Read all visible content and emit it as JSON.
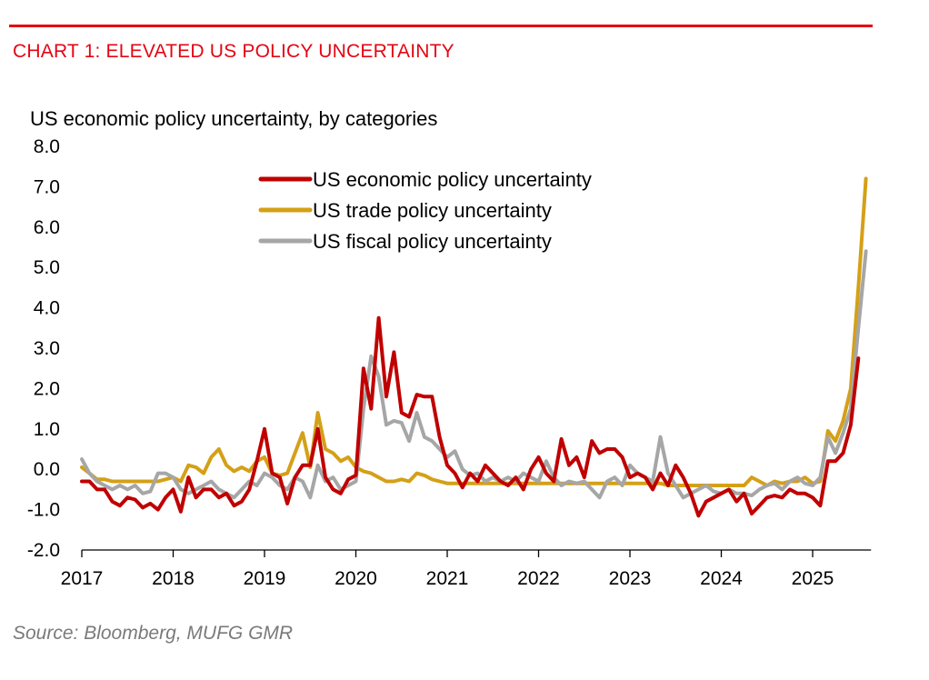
{
  "header": {
    "title": "CHART 1: ELEVATED US POLICY UNCERTAINTY",
    "subtitle": "US economic policy uncertainty, by categories"
  },
  "footer": {
    "source": "Source: Bloomberg, MUFG GMR"
  },
  "colors": {
    "title": "#e30613",
    "economic": "#c00000",
    "trade": "#d4a017",
    "fiscal": "#a6a6a6"
  },
  "chart_data": {
    "type": "line",
    "title": "US economic policy uncertainty, by categories",
    "x_start": "2017-01",
    "frequency": "monthly",
    "ylim": [
      -2.0,
      8.0
    ],
    "y_ticks": [
      "-2.0",
      "-1.0",
      "0.0",
      "1.0",
      "2.0",
      "3.0",
      "4.0",
      "5.0",
      "6.0",
      "7.0",
      "8.0"
    ],
    "x_ticks": [
      "2017",
      "2018",
      "2019",
      "2020",
      "2021",
      "2022",
      "2023",
      "2024",
      "2025"
    ],
    "grid": false,
    "legend_position": "top-center",
    "series": [
      {
        "name": "US economic policy uncertainty",
        "color": "#c00000",
        "values": [
          -0.3,
          -0.3,
          -0.5,
          -0.5,
          -0.8,
          -0.9,
          -0.7,
          -0.75,
          -0.95,
          -0.85,
          -1.0,
          -0.7,
          -0.5,
          -1.05,
          -0.2,
          -0.7,
          -0.5,
          -0.5,
          -0.7,
          -0.6,
          -0.9,
          -0.8,
          -0.5,
          0.2,
          1.0,
          -0.1,
          -0.2,
          -0.85,
          -0.2,
          0.1,
          0.1,
          1.0,
          -0.2,
          -0.5,
          -0.6,
          -0.25,
          -0.15,
          2.5,
          1.5,
          3.75,
          1.8,
          2.9,
          1.4,
          1.3,
          1.85,
          1.8,
          1.8,
          0.8,
          0.1,
          -0.1,
          -0.45,
          -0.1,
          -0.3,
          0.1,
          -0.1,
          -0.3,
          -0.4,
          -0.2,
          -0.5,
          0.0,
          0.3,
          -0.1,
          -0.3,
          0.75,
          0.1,
          0.3,
          -0.2,
          0.7,
          0.4,
          0.5,
          0.5,
          0.3,
          -0.2,
          -0.1,
          -0.2,
          -0.5,
          -0.1,
          -0.4,
          0.1,
          -0.2,
          -0.6,
          -1.15,
          -0.8,
          -0.7,
          -0.6,
          -0.5,
          -0.8,
          -0.6,
          -1.1,
          -0.9,
          -0.7,
          -0.65,
          -0.7,
          -0.5,
          -0.6,
          -0.6,
          -0.7,
          -0.9,
          0.2,
          0.2,
          0.4,
          1.1,
          2.75
        ]
      },
      {
        "name": "US trade policy uncertainty",
        "color": "#d4a017",
        "values": [
          0.05,
          -0.1,
          -0.25,
          -0.25,
          -0.3,
          -0.3,
          -0.3,
          -0.3,
          -0.3,
          -0.3,
          -0.3,
          -0.25,
          -0.2,
          -0.3,
          0.1,
          0.05,
          -0.1,
          0.3,
          0.5,
          0.1,
          -0.05,
          0.05,
          -0.05,
          0.2,
          0.3,
          -0.1,
          -0.15,
          -0.1,
          0.4,
          0.9,
          0.05,
          1.4,
          0.5,
          0.4,
          0.2,
          0.3,
          0.05,
          -0.05,
          -0.1,
          -0.2,
          -0.3,
          -0.3,
          -0.25,
          -0.3,
          -0.1,
          -0.15,
          -0.25,
          -0.3,
          -0.35,
          -0.35,
          -0.35,
          -0.35,
          -0.35,
          -0.35,
          -0.35,
          -0.35,
          -0.35,
          -0.35,
          -0.35,
          -0.35,
          -0.35,
          -0.35,
          -0.35,
          -0.35,
          -0.35,
          -0.35,
          -0.35,
          -0.35,
          -0.35,
          -0.35,
          -0.35,
          -0.35,
          -0.35,
          -0.35,
          -0.35,
          -0.35,
          -0.35,
          -0.4,
          -0.4,
          -0.4,
          -0.4,
          -0.4,
          -0.4,
          -0.4,
          -0.4,
          -0.4,
          -0.4,
          -0.4,
          -0.2,
          -0.3,
          -0.4,
          -0.3,
          -0.35,
          -0.3,
          -0.3,
          -0.2,
          -0.35,
          -0.3,
          0.95,
          0.7,
          1.2,
          2.0,
          4.5,
          7.2
        ]
      },
      {
        "name": "US fiscal policy uncertainty",
        "color": "#a6a6a6",
        "values": [
          0.25,
          -0.1,
          -0.3,
          -0.4,
          -0.5,
          -0.4,
          -0.5,
          -0.4,
          -0.6,
          -0.55,
          -0.1,
          -0.1,
          -0.2,
          -0.5,
          -0.6,
          -0.5,
          -0.4,
          -0.3,
          -0.5,
          -0.6,
          -0.7,
          -0.5,
          -0.3,
          -0.4,
          -0.1,
          -0.2,
          -0.4,
          -0.5,
          -0.2,
          -0.3,
          -0.7,
          0.1,
          -0.3,
          -0.2,
          -0.5,
          -0.4,
          -0.3,
          1.5,
          2.8,
          2.3,
          1.1,
          1.2,
          1.15,
          0.7,
          1.4,
          0.8,
          0.7,
          0.5,
          0.3,
          0.45,
          0.0,
          -0.15,
          -0.1,
          -0.3,
          -0.2,
          -0.3,
          -0.2,
          -0.3,
          -0.1,
          -0.2,
          -0.3,
          0.2,
          -0.2,
          -0.4,
          -0.3,
          -0.35,
          -0.3,
          -0.5,
          -0.7,
          -0.3,
          -0.2,
          -0.4,
          0.1,
          -0.1,
          -0.2,
          -0.3,
          0.8,
          -0.1,
          -0.4,
          -0.7,
          -0.6,
          -0.5,
          -0.4,
          -0.55,
          -0.6,
          -0.5,
          -0.6,
          -0.6,
          -0.65,
          -0.5,
          -0.4,
          -0.35,
          -0.5,
          -0.3,
          -0.2,
          -0.35,
          -0.4,
          -0.2,
          0.8,
          0.4,
          0.9,
          1.5,
          3.5,
          5.4
        ]
      }
    ]
  }
}
